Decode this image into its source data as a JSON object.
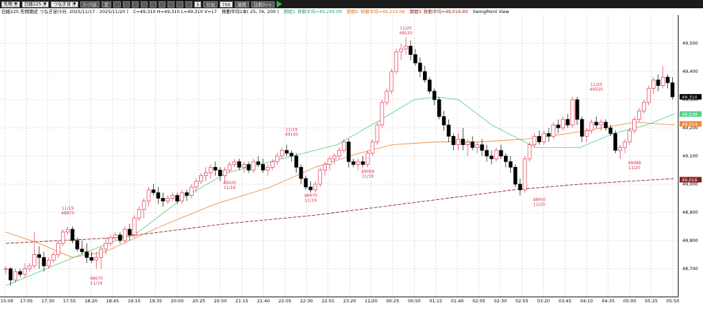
{
  "toolbar": {
    "market": "先物",
    "symbol": "日経225",
    "mode": "つなぎ足",
    "chart_type_button": "ﾛｰｿｸ足",
    "fixed_button": "定",
    "interval_value": "5",
    "interval_unit": "分足",
    "bars_value": "700",
    "apply_button": "適用",
    "compare_button": "比較ﾁｬｰﾄ"
  },
  "info": {
    "series": "日経225 先物期近 つなぎ足(5分, 2025/11/17 - 2025/11/20 )",
    "ohlc": "C=49,310 H=49,310 L=49,310 V=17",
    "ma_periods": "移動平均1本( 25, 76, 200 )",
    "ma1_label": "期間1",
    "ma1_value": "移動平均=49,249.09",
    "ma2_label": "期間2",
    "ma2_value": "移動平均=49,214.08",
    "ma3_label": "期間3",
    "ma3_value": "移動平均=49,016.80",
    "swing_label": "SwingPoint View"
  },
  "colors": {
    "up": "#e0304a",
    "down": "#000000",
    "ma_short": "#5ccf8a",
    "ma_mid": "#f08a3c",
    "ma_long": "#8b1c1c",
    "grid": "#bfbfbf",
    "swing_text": "#e0304a"
  },
  "chart_data": {
    "type": "candlestick",
    "ylim": [
      48600,
      49600
    ],
    "yticks": [
      "49,500",
      "49,400",
      "49,300",
      "49,200",
      "49,100",
      "49,000",
      "48,900",
      "48,800",
      "48,700"
    ],
    "xticks": [
      "8 15:00",
      "17:05",
      "17:30",
      "17:55",
      "18:20",
      "18:45",
      "19:10",
      "19:35",
      "20:00",
      "20:25",
      "20:50",
      "21:15",
      "21:40",
      "22:05",
      "22:30",
      "22:55",
      "23:20",
      "11/20",
      "00:25",
      "00:50",
      "01:15",
      "01:40",
      "02:05",
      "02:30",
      "02:55",
      "03:20",
      "03:45",
      "04:10",
      "04:35",
      "05:00",
      "05:25",
      "05:50"
    ],
    "price_flags": [
      {
        "label": "49,310",
        "value": 49310,
        "color": "#000000"
      },
      {
        "label": "49,249",
        "value": 49249,
        "color": "#5ccf8a"
      },
      {
        "label": "49,214",
        "value": 49214,
        "color": "#f08a3c"
      },
      {
        "label": "49,016",
        "value": 49016,
        "color": "#8b1c1c"
      }
    ],
    "candles": [
      [
        48700,
        48710,
        48680,
        48700
      ],
      [
        48700,
        48705,
        48640,
        48660
      ],
      [
        48660,
        48700,
        48650,
        48690
      ],
      [
        48690,
        48700,
        48670,
        48680
      ],
      [
        48680,
        48720,
        48670,
        48700
      ],
      [
        48700,
        48720,
        48690,
        48710
      ],
      [
        48710,
        48830,
        48700,
        48750
      ],
      [
        48750,
        48780,
        48700,
        48740
      ],
      [
        48740,
        48760,
        48690,
        48710
      ],
      [
        48710,
        48740,
        48700,
        48730
      ],
      [
        48730,
        48760,
        48720,
        48750
      ],
      [
        48750,
        48800,
        48740,
        48790
      ],
      [
        48790,
        48840,
        48780,
        48830
      ],
      [
        48830,
        48850,
        48820,
        48840
      ],
      [
        48840,
        48850,
        48790,
        48800
      ],
      [
        48800,
        48810,
        48760,
        48770
      ],
      [
        48770,
        48800,
        48750,
        48760
      ],
      [
        48760,
        48790,
        48720,
        48740
      ],
      [
        48740,
        48760,
        48720,
        48730
      ],
      [
        48730,
        48760,
        48700,
        48740
      ],
      [
        48740,
        48780,
        48700,
        48770
      ],
      [
        48770,
        48810,
        48750,
        48790
      ],
      [
        48790,
        48820,
        48780,
        48810
      ],
      [
        48810,
        48830,
        48800,
        48820
      ],
      [
        48820,
        48830,
        48790,
        48800
      ],
      [
        48800,
        48850,
        48790,
        48840
      ],
      [
        48840,
        48860,
        48800,
        48820
      ],
      [
        48820,
        48890,
        48810,
        48880
      ],
      [
        48880,
        48920,
        48870,
        48910
      ],
      [
        48910,
        48950,
        48880,
        48940
      ],
      [
        48940,
        48990,
        48920,
        48980
      ],
      [
        48980,
        49000,
        48960,
        48970
      ],
      [
        48970,
        48990,
        48930,
        48950
      ],
      [
        48950,
        48970,
        48920,
        48940
      ],
      [
        48940,
        48960,
        48930,
        48950
      ],
      [
        48950,
        48970,
        48940,
        48960
      ],
      [
        48960,
        48970,
        48930,
        48940
      ],
      [
        48940,
        48980,
        48930,
        48970
      ],
      [
        48970,
        48980,
        48940,
        48960
      ],
      [
        48960,
        49000,
        48950,
        48990
      ],
      [
        48990,
        49020,
        48970,
        49010
      ],
      [
        49010,
        49040,
        49000,
        49030
      ],
      [
        49030,
        49060,
        49010,
        49040
      ],
      [
        49040,
        49070,
        49020,
        49060
      ],
      [
        49060,
        49080,
        49030,
        49050
      ],
      [
        49050,
        49060,
        49010,
        49030
      ],
      [
        49030,
        49060,
        49000,
        49050
      ],
      [
        49050,
        49080,
        49040,
        49070
      ],
      [
        49070,
        49090,
        49060,
        49080
      ],
      [
        49080,
        49090,
        49050,
        49060
      ],
      [
        49060,
        49080,
        49040,
        49070
      ],
      [
        49070,
        49080,
        49040,
        49050
      ],
      [
        49050,
        49090,
        49040,
        49080
      ],
      [
        49080,
        49100,
        49060,
        49070
      ],
      [
        49070,
        49090,
        49040,
        49050
      ],
      [
        49050,
        49070,
        49030,
        49060
      ],
      [
        49060,
        49090,
        49050,
        49080
      ],
      [
        49080,
        49110,
        49070,
        49100
      ],
      [
        49100,
        49130,
        49090,
        49120
      ],
      [
        49120,
        49140,
        49100,
        49110
      ],
      [
        49110,
        49120,
        49080,
        49100
      ],
      [
        49100,
        49110,
        49040,
        49060
      ],
      [
        49060,
        49070,
        49000,
        49020
      ],
      [
        49020,
        49030,
        48980,
        48990
      ],
      [
        48990,
        49010,
        48970,
        48980
      ],
      [
        48980,
        49010,
        48970,
        49000
      ],
      [
        49000,
        49060,
        48990,
        49050
      ],
      [
        49050,
        49080,
        49030,
        49070
      ],
      [
        49070,
        49100,
        49050,
        49090
      ],
      [
        49090,
        49110,
        49070,
        49100
      ],
      [
        49100,
        49130,
        49090,
        49120
      ],
      [
        49120,
        49160,
        49110,
        49150
      ],
      [
        49150,
        49160,
        49060,
        49080
      ],
      [
        49080,
        49090,
        49060,
        49070
      ],
      [
        49070,
        49090,
        49050,
        49080
      ],
      [
        49080,
        49100,
        49060,
        49070
      ],
      [
        49070,
        49120,
        49060,
        49110
      ],
      [
        49110,
        49160,
        49100,
        49150
      ],
      [
        49150,
        49220,
        49140,
        49210
      ],
      [
        49210,
        49300,
        49200,
        49290
      ],
      [
        49290,
        49340,
        49280,
        49330
      ],
      [
        49330,
        49410,
        49320,
        49400
      ],
      [
        49400,
        49480,
        49390,
        49470
      ],
      [
        49470,
        49500,
        49440,
        49480
      ],
      [
        49480,
        49520,
        49460,
        49490
      ],
      [
        49490,
        49510,
        49440,
        49460
      ],
      [
        49460,
        49480,
        49420,
        49430
      ],
      [
        49430,
        49450,
        49380,
        49400
      ],
      [
        49400,
        49420,
        49360,
        49370
      ],
      [
        49370,
        49380,
        49320,
        49330
      ],
      [
        49330,
        49340,
        49280,
        49300
      ],
      [
        49300,
        49310,
        49230,
        49240
      ],
      [
        49240,
        49260,
        49190,
        49210
      ],
      [
        49210,
        49230,
        49150,
        49170
      ],
      [
        49170,
        49180,
        49120,
        49140
      ],
      [
        49140,
        49180,
        49120,
        49160
      ],
      [
        49160,
        49200,
        49120,
        49140
      ],
      [
        49140,
        49160,
        49100,
        49150
      ],
      [
        49150,
        49170,
        49120,
        49130
      ],
      [
        49130,
        49150,
        49110,
        49140
      ],
      [
        49140,
        49160,
        49100,
        49120
      ],
      [
        49120,
        49140,
        49080,
        49100
      ],
      [
        49100,
        49120,
        49070,
        49090
      ],
      [
        49090,
        49130,
        49080,
        49120
      ],
      [
        49120,
        49140,
        49090,
        49100
      ],
      [
        49100,
        49110,
        49060,
        49080
      ],
      [
        49080,
        49100,
        49040,
        49060
      ],
      [
        49060,
        49070,
        48990,
        49000
      ],
      [
        49000,
        49020,
        48960,
        48980
      ],
      [
        48980,
        49100,
        48970,
        49090
      ],
      [
        49090,
        49150,
        49080,
        49140
      ],
      [
        49140,
        49180,
        49130,
        49170
      ],
      [
        49170,
        49190,
        49140,
        49150
      ],
      [
        49150,
        49190,
        49140,
        49180
      ],
      [
        49180,
        49200,
        49150,
        49170
      ],
      [
        49170,
        49220,
        49160,
        49210
      ],
      [
        49210,
        49230,
        49180,
        49200
      ],
      [
        49200,
        49240,
        49190,
        49230
      ],
      [
        49230,
        49250,
        49200,
        49210
      ],
      [
        49210,
        49310,
        49200,
        49300
      ],
      [
        49300,
        49310,
        49210,
        49230
      ],
      [
        49230,
        49240,
        49150,
        49170
      ],
      [
        49170,
        49200,
        49150,
        49190
      ],
      [
        49190,
        49230,
        49180,
        49220
      ],
      [
        49220,
        49240,
        49200,
        49210
      ],
      [
        49210,
        49230,
        49190,
        49220
      ],
      [
        49220,
        49230,
        49190,
        49200
      ],
      [
        49200,
        49210,
        49170,
        49180
      ],
      [
        49180,
        49190,
        49110,
        49120
      ],
      [
        49120,
        49140,
        49090,
        49130
      ],
      [
        49130,
        49160,
        49110,
        49150
      ],
      [
        49150,
        49200,
        49140,
        49190
      ],
      [
        49190,
        49240,
        49180,
        49230
      ],
      [
        49230,
        49270,
        49220,
        49260
      ],
      [
        49260,
        49300,
        49250,
        49290
      ],
      [
        49290,
        49350,
        49280,
        49340
      ],
      [
        49340,
        49380,
        49320,
        49370
      ],
      [
        49370,
        49390,
        49330,
        49350
      ],
      [
        49350,
        49420,
        49340,
        49380
      ],
      [
        49380,
        49390,
        49340,
        49360
      ],
      [
        49360,
        49380,
        49300,
        49310
      ]
    ],
    "ma_short": [
      [
        0,
        48640
      ],
      [
        40,
        48770
      ],
      [
        60,
        48830
      ],
      [
        80,
        48950
      ],
      [
        100,
        49040
      ],
      [
        120,
        49080
      ],
      [
        150,
        49140
      ],
      [
        170,
        49230
      ],
      [
        185,
        49300
      ],
      [
        195,
        49310
      ],
      [
        205,
        49300
      ],
      [
        220,
        49210
      ],
      [
        240,
        49130
      ],
      [
        260,
        49130
      ],
      [
        275,
        49180
      ],
      [
        290,
        49210
      ],
      [
        303,
        49250
      ]
    ],
    "ma_mid": [
      [
        0,
        48830
      ],
      [
        15,
        48790
      ],
      [
        30,
        48740
      ],
      [
        45,
        48760
      ],
      [
        70,
        48850
      ],
      [
        95,
        48930
      ],
      [
        120,
        48990
      ],
      [
        140,
        49060
      ],
      [
        160,
        49110
      ],
      [
        175,
        49140
      ],
      [
        195,
        49150
      ],
      [
        215,
        49150
      ],
      [
        235,
        49160
      ],
      [
        255,
        49180
      ],
      [
        270,
        49200
      ],
      [
        285,
        49220
      ],
      [
        303,
        49210
      ]
    ],
    "ma_long": [
      [
        0,
        48790
      ],
      [
        50,
        48810
      ],
      [
        100,
        48860
      ],
      [
        140,
        48890
      ],
      [
        170,
        48920
      ],
      [
        200,
        48950
      ],
      [
        230,
        48980
      ],
      [
        260,
        49000
      ],
      [
        303,
        49020
      ]
    ],
    "swing_labels": [
      {
        "lines": [
          "11/19",
          "48870"
        ],
        "value": 48880,
        "at": 13,
        "pos": "above"
      },
      {
        "lines": [
          "48670",
          "11/19"
        ],
        "value": 48680,
        "at": 19,
        "pos": "below"
      },
      {
        "lines": [
          "11/19",
          "49140"
        ],
        "value": 49160,
        "at": 60,
        "pos": "above"
      },
      {
        "lines": [
          "49020",
          "11/19"
        ],
        "value": 49020,
        "at": 47,
        "pos": "below"
      },
      {
        "lines": [
          "48970",
          "11/19"
        ],
        "value": 48975,
        "at": 64,
        "pos": "below"
      },
      {
        "lines": [
          "49069",
          "11/19"
        ],
        "value": 49060,
        "at": 76,
        "pos": "below"
      },
      {
        "lines": [
          "11/20",
          "49520"
        ],
        "value": 49520,
        "at": 84,
        "pos": "above"
      },
      {
        "lines": [
          "48950",
          "11/20"
        ],
        "value": 48960,
        "at": 112,
        "pos": "below"
      },
      {
        "lines": [
          "11/20",
          "49320"
        ],
        "value": 49320,
        "at": 124,
        "pos": "above"
      },
      {
        "lines": [
          "49088",
          "11/20"
        ],
        "value": 49090,
        "at": 132,
        "pos": "below"
      }
    ]
  }
}
